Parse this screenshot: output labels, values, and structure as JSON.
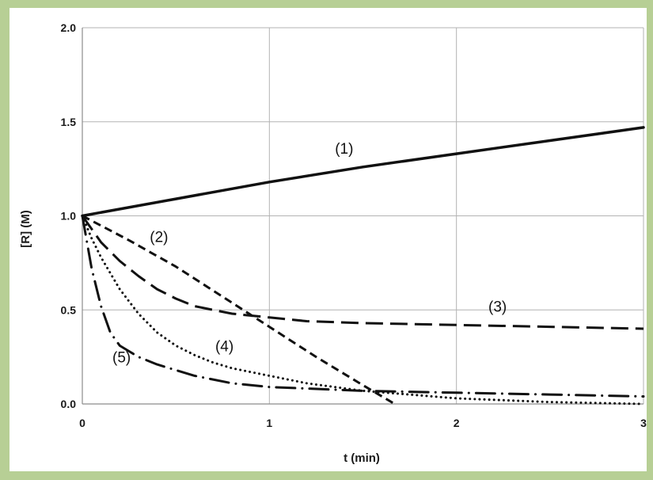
{
  "chart_data": {
    "type": "line",
    "title": "",
    "xlabel": "t (min)",
    "ylabel": "[R] (M)",
    "xlim": [
      0,
      3
    ],
    "ylim": [
      0,
      2
    ],
    "xticks": [
      0,
      1,
      2,
      3
    ],
    "yticks": [
      0,
      0.5,
      1,
      1.5,
      2
    ],
    "xtick_labels": [
      "0",
      "1",
      "2",
      "3"
    ],
    "ytick_labels": [
      "0.0",
      "0.5",
      "1.0",
      "1.5",
      "2.0"
    ],
    "grid": true,
    "legend": "none",
    "series": [
      {
        "label": "(1)",
        "style": "solid",
        "label_at": [
          1.4,
          1.36
        ],
        "x": [
          0,
          0.5,
          1,
          1.5,
          2,
          2.5,
          3
        ],
        "y": [
          1.0,
          1.09,
          1.18,
          1.26,
          1.33,
          1.4,
          1.47
        ]
      },
      {
        "label": "(2)",
        "style": "short-dash",
        "label_at": [
          0.41,
          0.89
        ],
        "x": [
          0,
          0.25,
          0.5,
          0.75,
          1.0,
          1.25,
          1.5,
          1.67
        ],
        "y": [
          1.0,
          0.87,
          0.73,
          0.57,
          0.41,
          0.25,
          0.1,
          0.0
        ]
      },
      {
        "label": "(3)",
        "style": "long-dash",
        "label_at": [
          2.22,
          0.52
        ],
        "x": [
          0,
          0.05,
          0.1,
          0.2,
          0.3,
          0.4,
          0.5,
          0.6,
          0.7,
          0.8,
          1.0,
          1.2,
          1.5,
          2.0,
          2.5,
          3.0
        ],
        "y": [
          1.0,
          0.93,
          0.86,
          0.76,
          0.68,
          0.61,
          0.56,
          0.52,
          0.5,
          0.48,
          0.46,
          0.44,
          0.43,
          0.42,
          0.41,
          0.4
        ]
      },
      {
        "label": "(4)",
        "style": "dotted",
        "label_at": [
          0.76,
          0.31
        ],
        "x": [
          0,
          0.05,
          0.1,
          0.2,
          0.3,
          0.4,
          0.5,
          0.6,
          0.7,
          0.8,
          1.0,
          1.2,
          1.5,
          2.0,
          2.5,
          3.0
        ],
        "y": [
          1.0,
          0.88,
          0.78,
          0.61,
          0.48,
          0.38,
          0.31,
          0.26,
          0.22,
          0.19,
          0.15,
          0.11,
          0.07,
          0.03,
          0.01,
          0.0
        ]
      },
      {
        "label": "(5)",
        "style": "dash-dot",
        "label_at": [
          0.21,
          0.25
        ],
        "x": [
          0,
          0.05,
          0.1,
          0.15,
          0.2,
          0.25,
          0.3,
          0.4,
          0.5,
          0.6,
          0.8,
          1.0,
          1.5,
          2.0,
          2.5,
          3.0
        ],
        "y": [
          1.0,
          0.72,
          0.52,
          0.38,
          0.31,
          0.28,
          0.25,
          0.21,
          0.18,
          0.15,
          0.11,
          0.09,
          0.07,
          0.06,
          0.05,
          0.04
        ]
      }
    ]
  }
}
